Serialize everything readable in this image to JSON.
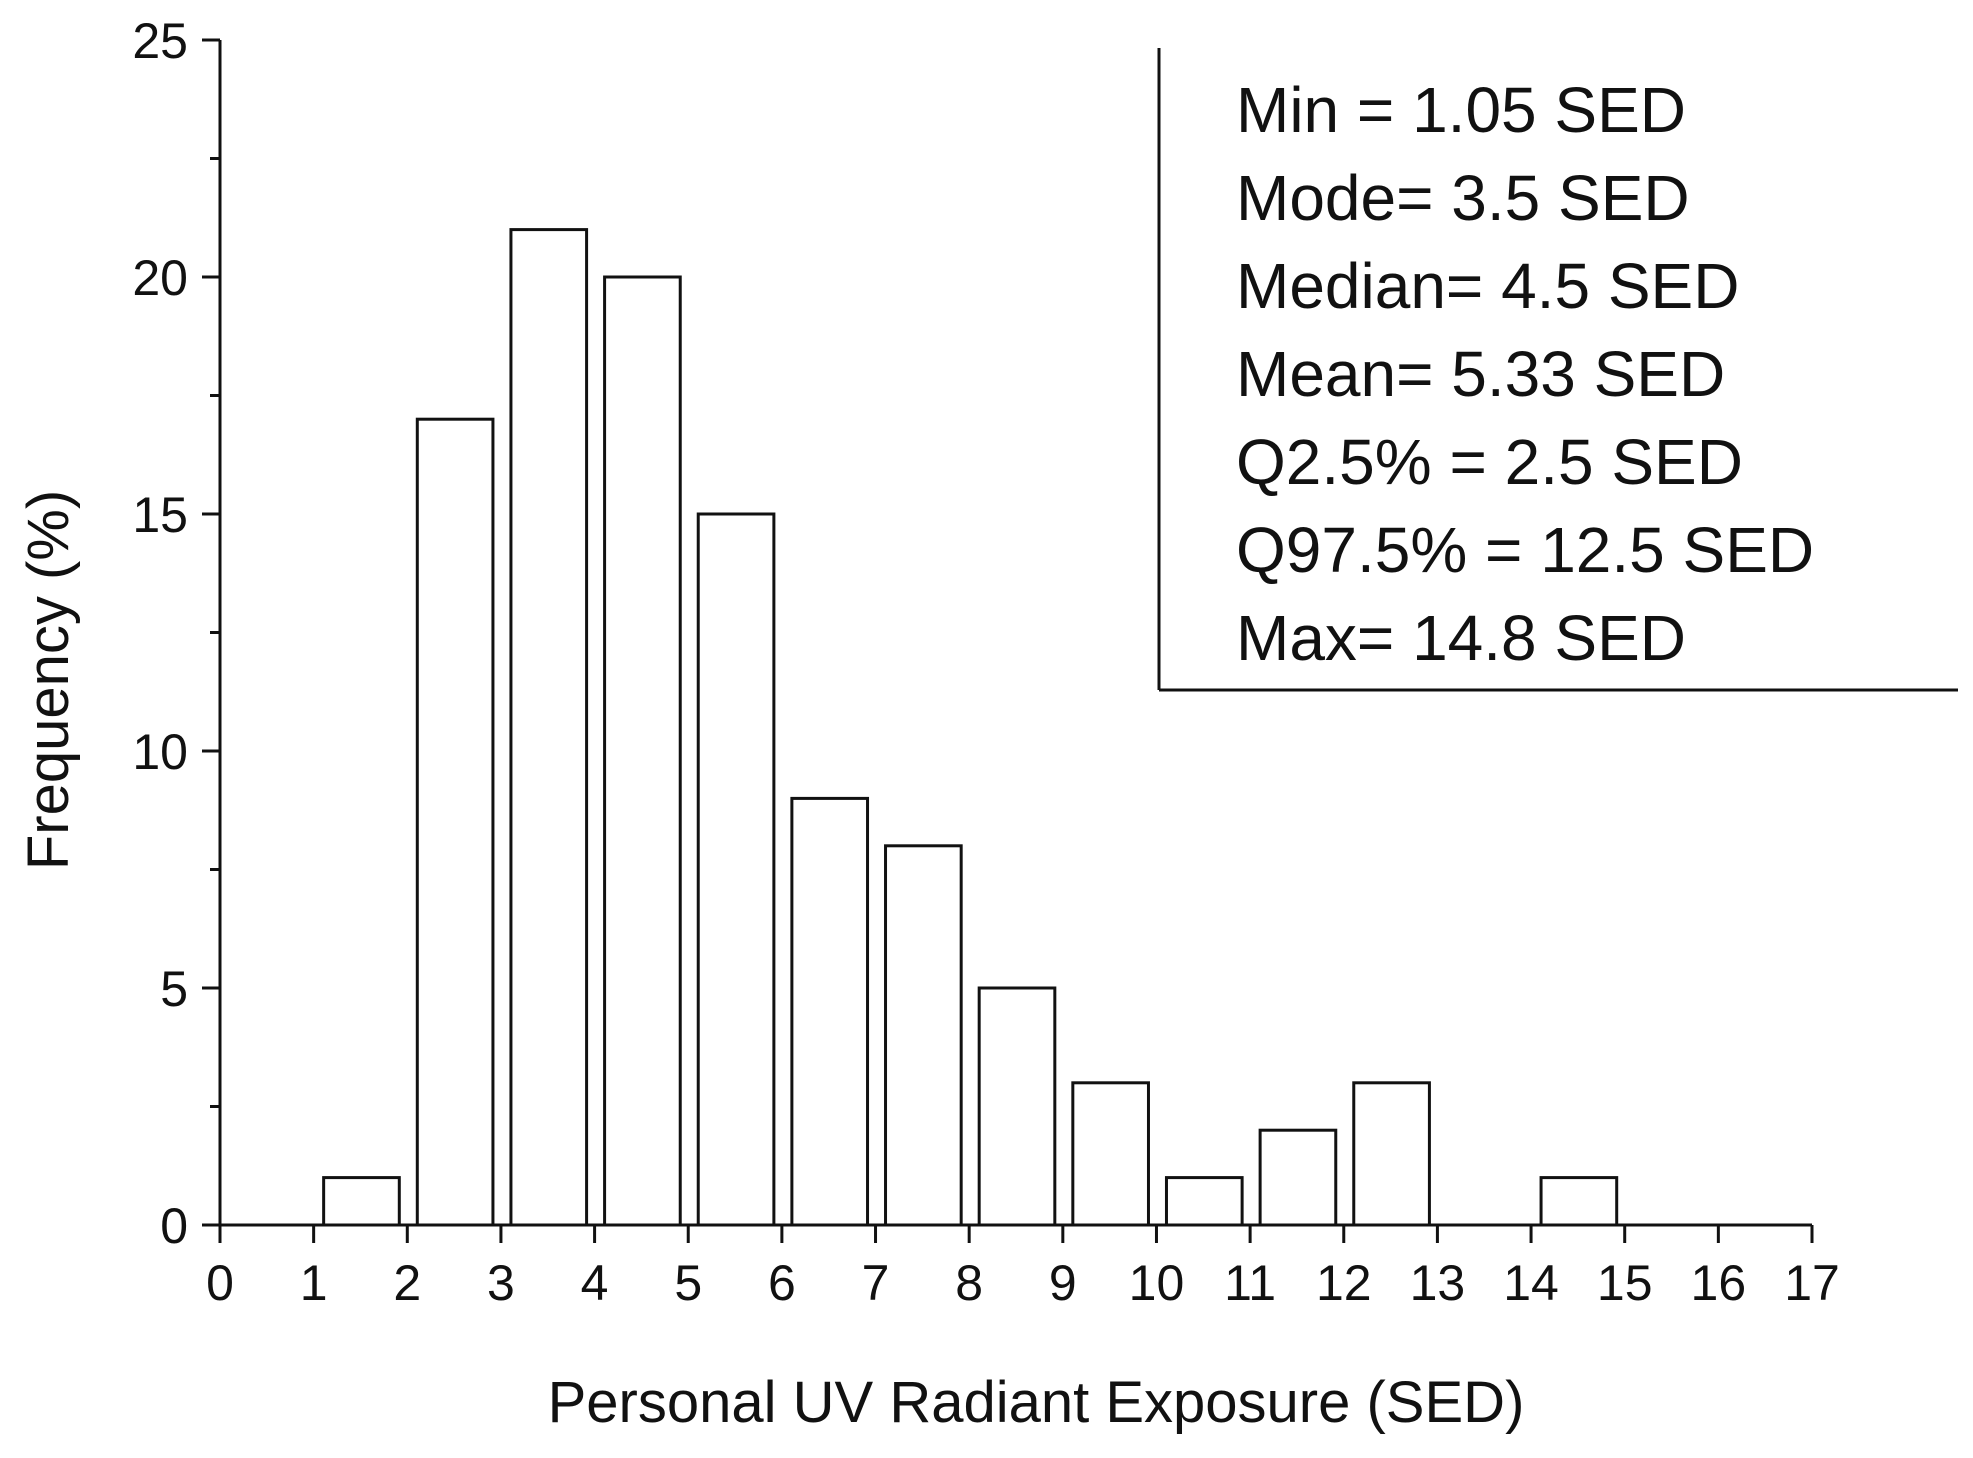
{
  "chart_data": {
    "type": "bar",
    "bin_edges": [
      1,
      2,
      3,
      4,
      5,
      6,
      7,
      8,
      9,
      10,
      11,
      12,
      13,
      14,
      15
    ],
    "values": [
      1,
      17,
      21,
      20,
      15,
      9,
      8,
      5,
      3,
      1,
      2,
      3,
      0,
      1
    ],
    "xlabel": "Personal UV Radiant Exposure (SED)",
    "ylabel": "Frequency (%)",
    "xlim": [
      0,
      17
    ],
    "ylim": [
      0,
      25
    ],
    "xticks": [
      "0",
      "1",
      "2",
      "3",
      "4",
      "5",
      "6",
      "7",
      "8",
      "9",
      "10",
      "11",
      "12",
      "13",
      "14",
      "15",
      "16",
      "17"
    ],
    "yticks": [
      "0",
      "5",
      "10",
      "15",
      "20",
      "25"
    ],
    "grid": false,
    "bar_fill": "#ffffff",
    "bar_stroke": "#111111",
    "annotations": [
      "Min = 1.05 SED",
      "Mode= 3.5 SED",
      "Median= 4.5 SED",
      "Mean= 5.33 SED",
      "Q2.5% = 2.5 SED",
      "Q97.5% = 12.5 SED",
      "Max= 14.8 SED"
    ]
  }
}
